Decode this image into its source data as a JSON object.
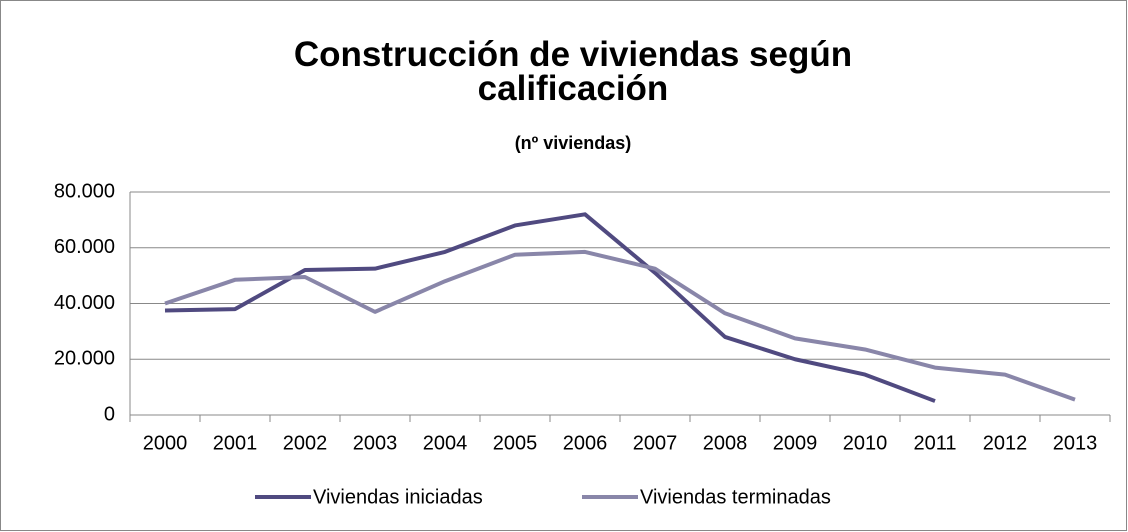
{
  "chart_data": {
    "type": "line",
    "title": "Construcción de viviendas según calificación",
    "subtitle": "(nº viviendas)",
    "categories": [
      "2000",
      "2001",
      "2002",
      "2003",
      "2004",
      "2005",
      "2006",
      "2007",
      "2008",
      "2009",
      "2010",
      "2011",
      "2012",
      "2013"
    ],
    "series": [
      {
        "name": "Viviendas iniciadas",
        "color": "#504a80",
        "values": [
          37500,
          38000,
          52000,
          52500,
          58500,
          68000,
          72000,
          51000,
          28000,
          20000,
          14500,
          5000,
          null,
          null
        ]
      },
      {
        "name": "Viviendas terminadas",
        "color": "#8986a9",
        "values": [
          40000,
          48500,
          49500,
          37000,
          48000,
          57500,
          58500,
          52500,
          36500,
          27500,
          23500,
          17000,
          14500,
          5500
        ]
      }
    ],
    "ylim": [
      0,
      80000
    ],
    "yticks": [
      0,
      {
        "value": 20000,
        "label": "20.000"
      },
      {
        "value": 40000,
        "label": "40.000"
      },
      {
        "value": 60000,
        "label": "60.000"
      },
      {
        "value": 80000,
        "label": "80.000"
      }
    ],
    "grid": true,
    "legend": "bottom"
  }
}
